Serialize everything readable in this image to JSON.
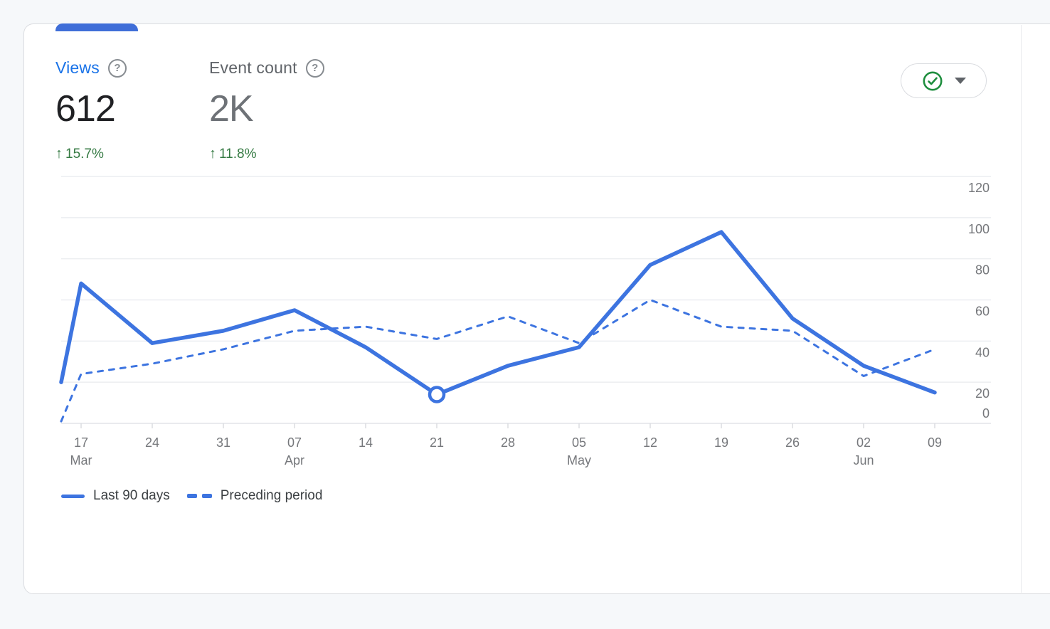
{
  "colors": {
    "line_blue": "#3d74e0",
    "tab_blue": "#3f6ed8",
    "link_blue": "#1a73e8",
    "green": "#357a43",
    "grid": "#eceef1",
    "axis_text": "#75777b"
  },
  "icons": {
    "help": "?",
    "trend_up": "↑",
    "status_ok": "checkmark-circle",
    "dropdown": "caret-down"
  },
  "metrics": [
    {
      "label": "Views",
      "value": "612",
      "trend_icon": "↑",
      "change": "15.7%",
      "selected": true
    },
    {
      "label": "Event count",
      "value": "2K",
      "trend_icon": "↑",
      "change": "11.8%",
      "selected": false
    }
  ],
  "chart_data": {
    "type": "line",
    "title": "",
    "xlabel": "",
    "ylabel": "",
    "ylim": [
      0,
      120
    ],
    "y_ticks": [
      0,
      20,
      40,
      60,
      80,
      100,
      120
    ],
    "grid": true,
    "legend_position": "bottom-left",
    "x_ticks": [
      {
        "day": "17",
        "month": "Mar"
      },
      {
        "day": "24"
      },
      {
        "day": "31"
      },
      {
        "day": "07",
        "month": "Apr"
      },
      {
        "day": "14"
      },
      {
        "day": "21"
      },
      {
        "day": "28"
      },
      {
        "day": "05",
        "month": "May"
      },
      {
        "day": "12"
      },
      {
        "day": "19"
      },
      {
        "day": "26"
      },
      {
        "day": "02",
        "month": "Jun"
      },
      {
        "day": "09"
      }
    ],
    "points_before_first_tick": 1,
    "series": [
      {
        "name": "Last 90 days",
        "style": "solid",
        "values": [
          20,
          68,
          39,
          45,
          55,
          37,
          14,
          28,
          37,
          77,
          93,
          51,
          28,
          15
        ]
      },
      {
        "name": "Preceding period",
        "style": "dashed",
        "values": [
          1,
          24,
          29,
          36,
          45,
          47,
          41,
          52,
          39,
          60,
          47,
          45,
          23,
          36
        ]
      }
    ],
    "marker": {
      "series_index": 0,
      "point_index": 6
    }
  }
}
